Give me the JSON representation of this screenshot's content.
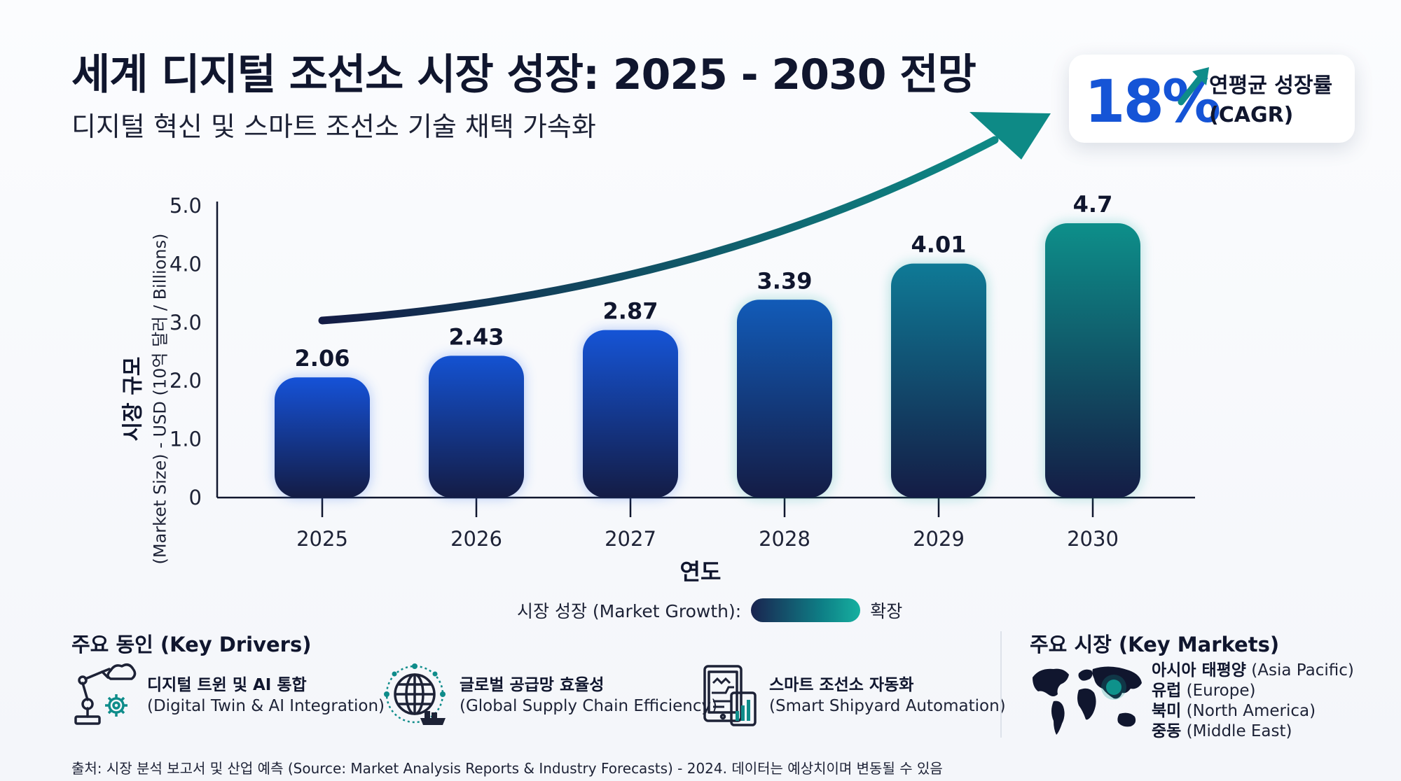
{
  "title": "세계 디지털 조선소 시장 성장: 2025 - 2030 전망",
  "subtitle": "디지털 혁신 및 스마트 조선소 기술 채택 가속화",
  "cagr": {
    "value": "18%",
    "label_line1": "연평균 성장률",
    "label_line2": "(CAGR)"
  },
  "chart_data": {
    "type": "bar",
    "categories": [
      "2025",
      "2026",
      "2027",
      "2028",
      "2029",
      "2030"
    ],
    "values": [
      2.06,
      2.43,
      2.87,
      3.39,
      4.01,
      4.7
    ],
    "data_labels": [
      "2.06",
      "2.43",
      "2.87",
      "3.39",
      "4.01",
      "4.7"
    ],
    "ylabel_main": "시장 규모",
    "ylabel_sub": "(Market Size) - USD (10억 달러 / Billions)",
    "xlabel": "연도",
    "ylim": [
      0,
      5
    ],
    "yticks": [
      0,
      1,
      2,
      3,
      4,
      5
    ],
    "ytick_labels": [
      "0",
      "1.0",
      "2.0",
      "3.0",
      "4.0",
      "5.0"
    ],
    "grid": false,
    "colors": {
      "start": "#1552d8",
      "end": "#0d8f8a",
      "base": "#141c45",
      "arrow": "#0e7e85"
    }
  },
  "legend": {
    "label": "시장 성장 (Market Growth):",
    "end_label": "확장"
  },
  "drivers": {
    "title": "주요 동인 (Key Drivers)",
    "items": [
      {
        "ko": "디지털 트윈 및 AI 통합",
        "en": "(Digital Twin & AI Integration)",
        "icon": "robot-arm-icon"
      },
      {
        "ko": "글로벌 공급망 효율성",
        "en": "(Global Supply Chain Efficiency)",
        "icon": "globe-network-icon"
      },
      {
        "ko": "스마트 조선소 자동화",
        "en": "(Smart Shipyard Automation)",
        "icon": "tablet-dashboard-icon"
      }
    ]
  },
  "markets": {
    "title": "주요 시장 (Key Markets)",
    "items": [
      {
        "ko": "아시아 태평양",
        "en": "(Asia Pacific)"
      },
      {
        "ko": "유럽",
        "en": "(Europe)"
      },
      {
        "ko": "북미",
        "en": "(North America)"
      },
      {
        "ko": "중동",
        "en": "(Middle East)"
      }
    ]
  },
  "source": "출처: 시장 분석 보고서 및 산업 예측 (Source: Market Analysis Reports & Industry Forecasts) - 2024. 데이터는 예상치이며 변동될 수 있음"
}
